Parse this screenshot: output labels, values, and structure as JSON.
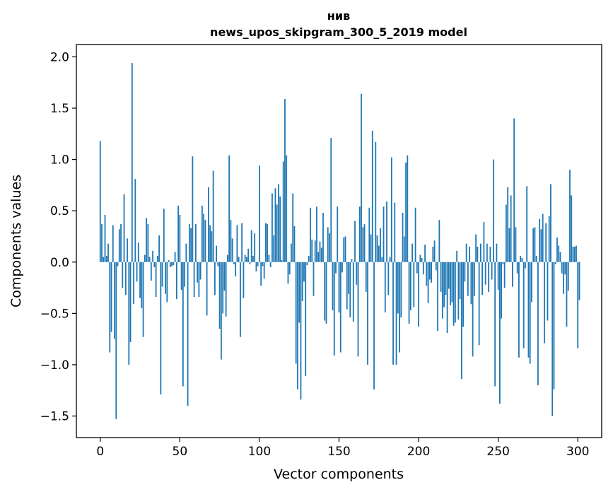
{
  "chart_data": {
    "type": "bar",
    "title": "нив",
    "subtitle": "news_upos_skipgram_300_5_2019 model",
    "xlabel": "Vector components",
    "ylabel": "Components values",
    "xlim": [
      -15,
      315
    ],
    "ylim": [
      -1.71,
      2.12
    ],
    "bar_color": "#1f77b4",
    "grid": false,
    "x_ticks": [
      0,
      50,
      100,
      150,
      200,
      250,
      300
    ],
    "x_tick_labels": [
      "0",
      "50",
      "100",
      "150",
      "200",
      "250",
      "300"
    ],
    "y_ticks": [
      -1.5,
      -1.0,
      -0.5,
      0.0,
      0.5,
      1.0,
      1.5,
      2.0
    ],
    "y_tick_labels": [
      "−1.5",
      "−1.0",
      "−0.5",
      "0.0",
      "0.5",
      "1.0",
      "1.5",
      "2.0"
    ],
    "values": [
      1.18,
      0.37,
      0.05,
      0.46,
      0.06,
      0.18,
      -0.88,
      -0.68,
      0.36,
      -0.75,
      -1.53,
      -0.04,
      0.32,
      0.37,
      -0.25,
      0.66,
      -0.32,
      0.23,
      -1.0,
      -0.78,
      1.94,
      -0.41,
      0.81,
      -0.19,
      0.19,
      -0.35,
      -0.45,
      -0.73,
      0.07,
      0.43,
      0.37,
      0.05,
      -0.18,
      0.11,
      -0.05,
      -0.34,
      0.06,
      0.26,
      -1.29,
      -0.24,
      0.52,
      -0.31,
      -0.39,
      0.02,
      -0.05,
      -0.04,
      -0.03,
      0.1,
      -0.36,
      0.55,
      0.46,
      -0.27,
      -1.21,
      -0.24,
      0.18,
      -1.4,
      0.37,
      0.33,
      1.03,
      -0.34,
      0.37,
      -0.2,
      -0.34,
      -0.17,
      0.55,
      0.47,
      0.41,
      -0.52,
      0.73,
      0.36,
      0.3,
      0.89,
      -0.32,
      0.16,
      -0.04,
      -0.65,
      -0.95,
      -0.5,
      -0.28,
      -0.53,
      0.07,
      1.04,
      0.41,
      0.23,
      -0.02,
      -0.14,
      0.36,
      0.05,
      -0.73,
      0.38,
      -0.35,
      0.07,
      0.05,
      0.13,
      -0.02,
      0.31,
      0.06,
      0.28,
      -0.09,
      -0.04,
      0.94,
      -0.23,
      -0.04,
      -0.16,
      0.38,
      0.37,
      0.07,
      -0.05,
      0.67,
      0.26,
      0.72,
      0.56,
      0.76,
      0.64,
      0.02,
      0.98,
      1.59,
      1.04,
      -0.21,
      -0.12,
      0.18,
      0.67,
      0.35,
      -0.99,
      -1.24,
      -0.59,
      -1.34,
      -0.38,
      -0.19,
      -1.11,
      -0.03,
      0.06,
      0.53,
      0.22,
      -0.33,
      0.21,
      0.54,
      0.1,
      0.2,
      0.14,
      0.48,
      -0.57,
      -0.6,
      0.34,
      0.28,
      1.21,
      -0.47,
      -0.91,
      -0.11,
      0.54,
      -0.49,
      -0.88,
      -0.1,
      0.24,
      0.25,
      -0.46,
      -0.31,
      -0.54,
      0.03,
      -0.58,
      0.4,
      -0.22,
      -0.92,
      0.54,
      1.64,
      0.34,
      0.37,
      -0.29,
      -1.0,
      0.53,
      0.27,
      1.28,
      -1.24,
      1.17,
      0.26,
      0.16,
      0.33,
      0.05,
      0.54,
      -0.49,
      0.59,
      -0.32,
      0.05,
      1.02,
      -1.0,
      0.58,
      -1.0,
      -0.5,
      -0.88,
      -0.54,
      0.48,
      0.25,
      0.97,
      1.04,
      -0.6,
      -0.47,
      0.18,
      -0.44,
      0.53,
      -0.11,
      -0.63,
      0.07,
      0.04,
      -0.12,
      0.17,
      -0.23,
      -0.4,
      -0.17,
      -0.2,
      0.15,
      0.21,
      -0.08,
      -0.67,
      0.41,
      -0.29,
      -0.55,
      -0.44,
      -0.32,
      -0.69,
      -0.26,
      -0.42,
      -0.39,
      -0.62,
      -0.59,
      0.11,
      -0.56,
      -0.36,
      -1.14,
      -0.63,
      -0.19,
      0.18,
      -0.33,
      0.15,
      -0.41,
      -0.92,
      -0.33,
      0.27,
      0.15,
      -0.81,
      0.18,
      -0.32,
      0.39,
      -0.22,
      0.18,
      -0.29,
      0.15,
      -0.17,
      1.0,
      -1.21,
      0.18,
      -0.27,
      -1.38,
      -0.55,
      -0.02,
      -0.25,
      0.56,
      0.73,
      0.33,
      0.65,
      -0.24,
      1.4,
      0.34,
      -0.11,
      -0.93,
      0.06,
      0.04,
      -0.84,
      -0.06,
      0.74,
      -0.93,
      -0.99,
      -0.39,
      0.33,
      0.34,
      0.06,
      -1.2,
      0.42,
      0.32,
      0.47,
      -0.79,
      0.38,
      -0.57,
      0.45,
      0.76,
      -1.5,
      -1.24,
      -0.02,
      0.24,
      0.16,
      0.1,
      -0.11,
      -0.31,
      -0.12,
      -0.63,
      -0.28,
      0.9,
      0.65,
      0.15,
      0.15,
      0.16,
      -0.84,
      -0.37
    ]
  }
}
